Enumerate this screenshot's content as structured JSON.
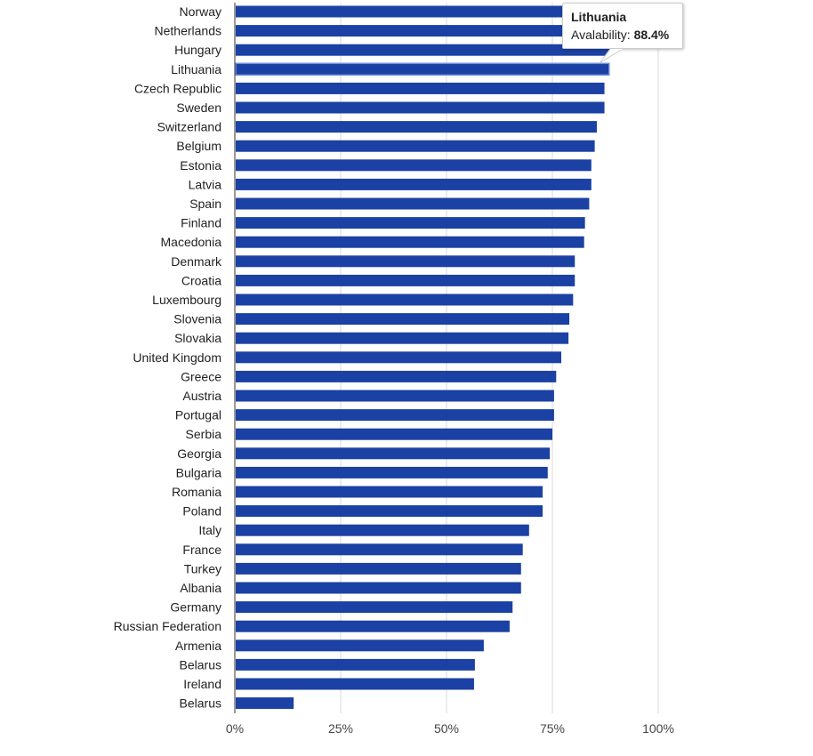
{
  "chart_data": {
    "type": "bar",
    "orientation": "horizontal",
    "categories": [
      "Norway",
      "Netherlands",
      "Hungary",
      "Lithuania",
      "Czech Republic",
      "Sweden",
      "Switzerland",
      "Belgium",
      "Estonia",
      "Latvia",
      "Spain",
      "Finland",
      "Macedonia",
      "Denmark",
      "Croatia",
      "Luxembourg",
      "Slovenia",
      "Slovakia",
      "United Kingdom",
      "Greece",
      "Austria",
      "Portugal",
      "Serbia",
      "Georgia",
      "Bulgaria",
      "Romania",
      "Poland",
      "Italy",
      "France",
      "Turkey",
      "Albania",
      "Germany",
      "Russian Federation",
      "Armenia",
      "Belarus",
      "Ireland",
      "Belarus"
    ],
    "series": [
      {
        "values": [
          89.5,
          89.3,
          89.0,
          88.4,
          87.3,
          87.3,
          85.5,
          85.0,
          84.2,
          84.2,
          83.7,
          82.7,
          82.5,
          80.3,
          80.3,
          79.9,
          79.0,
          78.8,
          77.1,
          75.9,
          75.4,
          75.4,
          75.0,
          74.4,
          73.9,
          72.7,
          72.7,
          69.5,
          68.0,
          67.6,
          67.6,
          65.6,
          64.9,
          58.8,
          56.7,
          56.5,
          13.9
        ],
        "color": "#1a41a3"
      }
    ],
    "xlim": [
      0,
      100
    ],
    "x_ticks": [
      "0%",
      "25%",
      "50%",
      "75%",
      "100%"
    ],
    "grid": true,
    "tooltip": {
      "category": "Lithuania",
      "label": "Avalability:",
      "value": "88.4%"
    }
  }
}
